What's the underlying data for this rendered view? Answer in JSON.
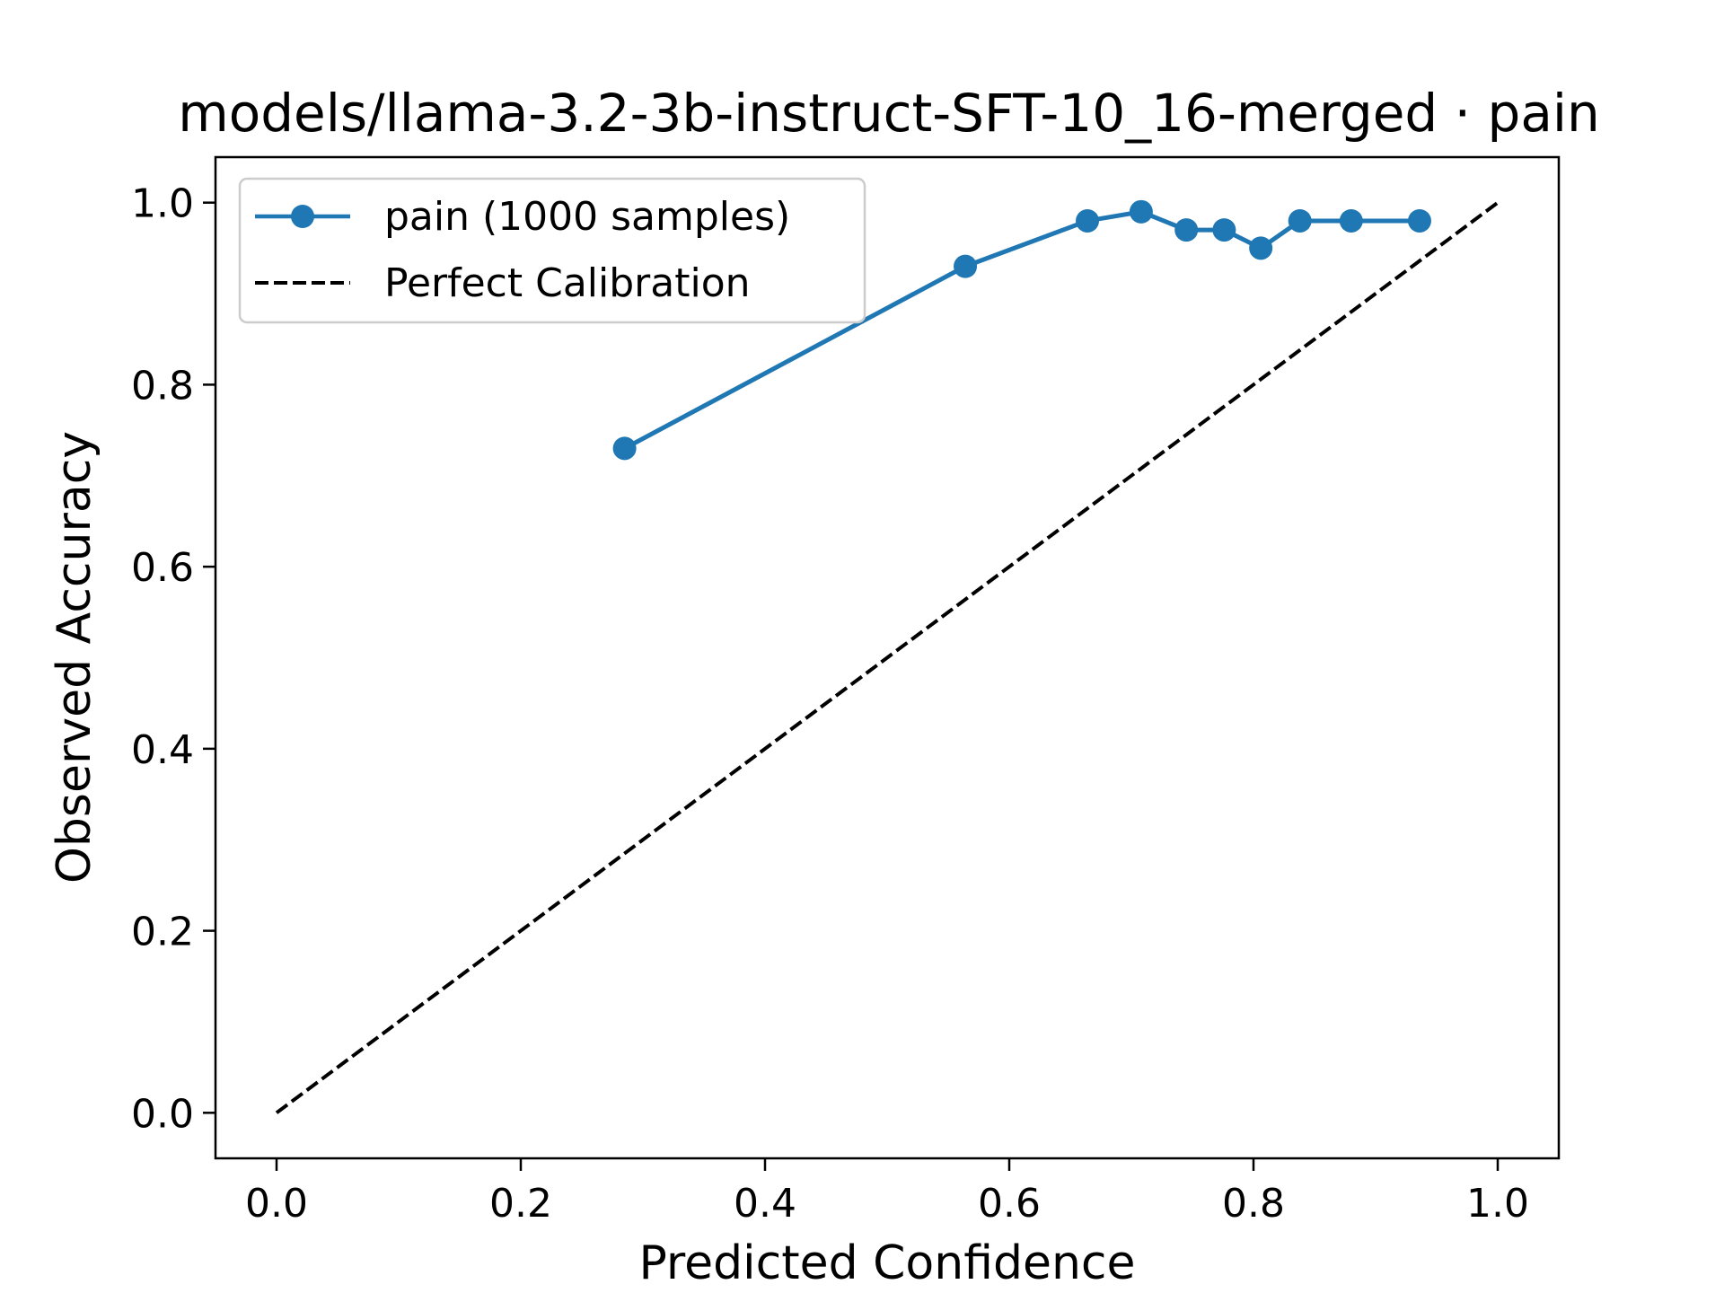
{
  "chart_data": {
    "type": "line",
    "title": "models/llama-3.2-3b-instruct-SFT-10_16-merged · pain",
    "xlabel": "Predicted Confidence",
    "ylabel": "Observed Accuracy",
    "xlim": [
      -0.05,
      1.05
    ],
    "ylim": [
      -0.05,
      1.05
    ],
    "xticks": [
      "0.0",
      "0.2",
      "0.4",
      "0.6",
      "0.8",
      "1.0"
    ],
    "yticks": [
      "0.0",
      "0.2",
      "0.4",
      "0.6",
      "0.8",
      "1.0"
    ],
    "grid": false,
    "legend_position": "top-left",
    "series": [
      {
        "name": "pain (1000 samples)",
        "color": "#1f77b4",
        "style": "solid-with-markers",
        "x": [
          0.285,
          0.564,
          0.664,
          0.708,
          0.745,
          0.776,
          0.806,
          0.838,
          0.88,
          0.936
        ],
        "y": [
          0.73,
          0.93,
          0.98,
          0.99,
          0.97,
          0.97,
          0.95,
          0.98,
          0.98,
          0.98
        ]
      },
      {
        "name": "Perfect Calibration",
        "color": "#000000",
        "style": "dashed",
        "x": [
          0.0,
          1.0
        ],
        "y": [
          0.0,
          1.0
        ]
      }
    ]
  }
}
